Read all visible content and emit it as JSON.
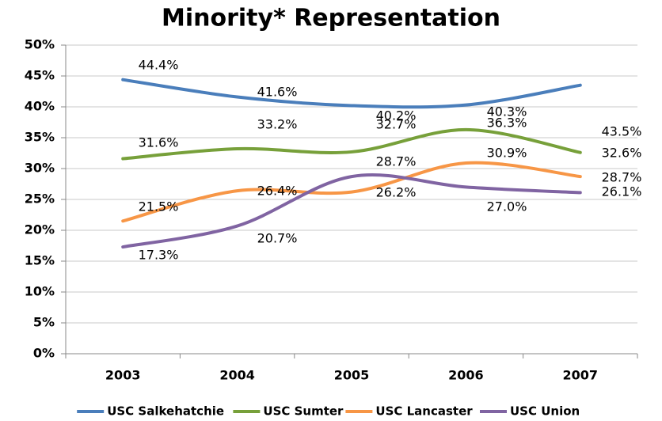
{
  "chart_data": {
    "type": "line",
    "title": "Minority* Representation",
    "categories": [
      "2003",
      "2004",
      "2005",
      "2006",
      "2007"
    ],
    "series": [
      {
        "name": "USC Salkehatchie",
        "color": "#4a7ebb",
        "values": [
          44.4,
          41.6,
          40.2,
          40.3,
          43.5
        ],
        "value_labels": [
          "44.4%",
          "41.6%",
          "40.2%",
          "40.3%",
          "43.5%"
        ]
      },
      {
        "name": "USC Sumter",
        "color": "#77a03a",
        "values": [
          31.6,
          33.2,
          32.7,
          36.3,
          32.6
        ],
        "value_labels": [
          "31.6%",
          "33.2%",
          "32.7%",
          "36.3%",
          "32.6%"
        ]
      },
      {
        "name": "USC Lancaster",
        "color": "#f79646",
        "values": [
          21.5,
          26.4,
          26.2,
          30.9,
          28.7
        ],
        "value_labels": [
          "21.5%",
          "26.4%",
          "26.2%",
          "30.9%",
          "28.7%"
        ]
      },
      {
        "name": "USC Union",
        "color": "#8064a2",
        "values": [
          17.3,
          20.7,
          28.7,
          27.0,
          26.1
        ],
        "value_labels": [
          "17.3%",
          "20.7%",
          "28.7%",
          "27.0%",
          "26.1%"
        ]
      }
    ],
    "ylim": [
      0,
      50
    ],
    "yticks": [
      {
        "value": 0,
        "label": "0%"
      },
      {
        "value": 5,
        "label": "5%"
      },
      {
        "value": 10,
        "label": "10%"
      },
      {
        "value": 15,
        "label": "15%"
      },
      {
        "value": 20,
        "label": "20%"
      },
      {
        "value": 25,
        "label": "25%"
      },
      {
        "value": 30,
        "label": "30%"
      },
      {
        "value": 35,
        "label": "35%"
      },
      {
        "value": 40,
        "label": "40%"
      },
      {
        "value": 45,
        "label": "45%"
      },
      {
        "value": 50,
        "label": "50%"
      }
    ],
    "grid": true,
    "legend": "bottom"
  }
}
